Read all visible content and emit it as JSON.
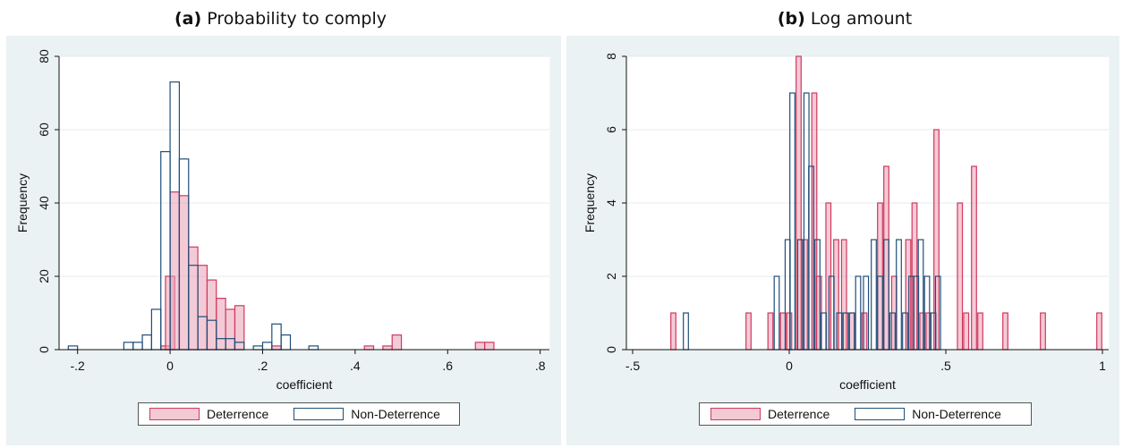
{
  "chart_data": [
    {
      "type": "histogram",
      "title_prefix": "(a)",
      "title_text": "Probability to comply",
      "xlabel": "coefficient",
      "ylabel": "Frequency",
      "xlim": [
        -0.24,
        0.82
      ],
      "ylim": [
        0,
        80
      ],
      "xticks": [
        -0.2,
        0,
        0.2,
        0.4,
        0.6,
        0.8
      ],
      "xtick_labels": [
        "-.2",
        "0",
        ".2",
        ".4",
        ".6",
        ".8"
      ],
      "yticks": [
        0,
        20,
        40,
        60,
        80
      ],
      "ytick_labels": [
        "0",
        "20",
        "40",
        "60",
        "80"
      ],
      "grid": true,
      "bin_width": 0.02,
      "legend_placement": "bottom",
      "series": [
        {
          "name": "Deterrence",
          "color": "#e8a0b4",
          "edge": "#d2385f",
          "bins": [
            {
              "x": -0.01,
              "y": 1
            },
            {
              "x": 0.0,
              "y": 20
            },
            {
              "x": 0.01,
              "y": 43
            },
            {
              "x": 0.03,
              "y": 42
            },
            {
              "x": 0.05,
              "y": 28
            },
            {
              "x": 0.07,
              "y": 23
            },
            {
              "x": 0.09,
              "y": 19
            },
            {
              "x": 0.11,
              "y": 14
            },
            {
              "x": 0.13,
              "y": 11
            },
            {
              "x": 0.15,
              "y": 12
            },
            {
              "x": 0.23,
              "y": 1
            },
            {
              "x": 0.43,
              "y": 1
            },
            {
              "x": 0.47,
              "y": 1
            },
            {
              "x": 0.49,
              "y": 4
            },
            {
              "x": 0.67,
              "y": 2
            },
            {
              "x": 0.69,
              "y": 2
            }
          ]
        },
        {
          "name": "Non-Deterrence",
          "color": "none",
          "edge": "#1f4e79",
          "bins": [
            {
              "x": -0.21,
              "y": 1
            },
            {
              "x": -0.09,
              "y": 2
            },
            {
              "x": -0.07,
              "y": 2
            },
            {
              "x": -0.05,
              "y": 4
            },
            {
              "x": -0.03,
              "y": 11
            },
            {
              "x": -0.01,
              "y": 54
            },
            {
              "x": 0.01,
              "y": 73
            },
            {
              "x": 0.03,
              "y": 52
            },
            {
              "x": 0.05,
              "y": 23
            },
            {
              "x": 0.07,
              "y": 9
            },
            {
              "x": 0.09,
              "y": 8
            },
            {
              "x": 0.11,
              "y": 3
            },
            {
              "x": 0.13,
              "y": 3
            },
            {
              "x": 0.15,
              "y": 2
            },
            {
              "x": 0.19,
              "y": 1
            },
            {
              "x": 0.21,
              "y": 2
            },
            {
              "x": 0.23,
              "y": 7
            },
            {
              "x": 0.25,
              "y": 4
            },
            {
              "x": 0.31,
              "y": 1
            }
          ]
        }
      ]
    },
    {
      "type": "histogram",
      "title_prefix": "(b)",
      "title_text": "Log amount",
      "xlabel": "coefficient",
      "ylabel": "Frequency",
      "xlim": [
        -0.52,
        1.02
      ],
      "ylim": [
        0,
        8
      ],
      "xticks": [
        -0.5,
        0,
        0.5,
        1
      ],
      "xtick_labels": [
        "-.5",
        "0",
        ".5",
        "1"
      ],
      "yticks": [
        0,
        2,
        4,
        6,
        8
      ],
      "ytick_labels": [
        "0",
        "2",
        "4",
        "6",
        "8"
      ],
      "grid": true,
      "bin_width": 0.016,
      "legend_placement": "bottom",
      "series": [
        {
          "name": "Deterrence",
          "color": "#e8a0b4",
          "edge": "#d2385f",
          "bins": [
            {
              "x": -0.37,
              "y": 1
            },
            {
              "x": -0.13,
              "y": 1
            },
            {
              "x": -0.06,
              "y": 1
            },
            {
              "x": -0.02,
              "y": 1
            },
            {
              "x": 0.0,
              "y": 1
            },
            {
              "x": 0.03,
              "y": 8
            },
            {
              "x": 0.05,
              "y": 3
            },
            {
              "x": 0.08,
              "y": 7
            },
            {
              "x": 0.095,
              "y": 2
            },
            {
              "x": 0.125,
              "y": 4
            },
            {
              "x": 0.15,
              "y": 3
            },
            {
              "x": 0.175,
              "y": 3
            },
            {
              "x": 0.2,
              "y": 1
            },
            {
              "x": 0.24,
              "y": 1
            },
            {
              "x": 0.29,
              "y": 4
            },
            {
              "x": 0.31,
              "y": 5
            },
            {
              "x": 0.335,
              "y": 2
            },
            {
              "x": 0.38,
              "y": 3
            },
            {
              "x": 0.4,
              "y": 4
            },
            {
              "x": 0.425,
              "y": 1
            },
            {
              "x": 0.445,
              "y": 1
            },
            {
              "x": 0.47,
              "y": 6
            },
            {
              "x": 0.545,
              "y": 4
            },
            {
              "x": 0.565,
              "y": 1
            },
            {
              "x": 0.59,
              "y": 5
            },
            {
              "x": 0.61,
              "y": 1
            },
            {
              "x": 0.69,
              "y": 1
            },
            {
              "x": 0.81,
              "y": 1
            },
            {
              "x": 0.99,
              "y": 1
            }
          ]
        },
        {
          "name": "Non-Deterrence",
          "color": "none",
          "edge": "#1f4e79",
          "bins": [
            {
              "x": -0.33,
              "y": 1
            },
            {
              "x": -0.04,
              "y": 2
            },
            {
              "x": -0.005,
              "y": 3
            },
            {
              "x": 0.01,
              "y": 7
            },
            {
              "x": 0.035,
              "y": 3
            },
            {
              "x": 0.055,
              "y": 7
            },
            {
              "x": 0.07,
              "y": 5
            },
            {
              "x": 0.09,
              "y": 3
            },
            {
              "x": 0.11,
              "y": 1
            },
            {
              "x": 0.135,
              "y": 2
            },
            {
              "x": 0.16,
              "y": 1
            },
            {
              "x": 0.18,
              "y": 1
            },
            {
              "x": 0.2,
              "y": 1
            },
            {
              "x": 0.22,
              "y": 2
            },
            {
              "x": 0.245,
              "y": 2
            },
            {
              "x": 0.27,
              "y": 3
            },
            {
              "x": 0.29,
              "y": 2
            },
            {
              "x": 0.31,
              "y": 3
            },
            {
              "x": 0.33,
              "y": 1
            },
            {
              "x": 0.35,
              "y": 3
            },
            {
              "x": 0.37,
              "y": 1
            },
            {
              "x": 0.39,
              "y": 2
            },
            {
              "x": 0.405,
              "y": 2
            },
            {
              "x": 0.42,
              "y": 3
            },
            {
              "x": 0.44,
              "y": 2
            },
            {
              "x": 0.46,
              "y": 1
            },
            {
              "x": 0.475,
              "y": 2
            }
          ]
        }
      ]
    }
  ]
}
